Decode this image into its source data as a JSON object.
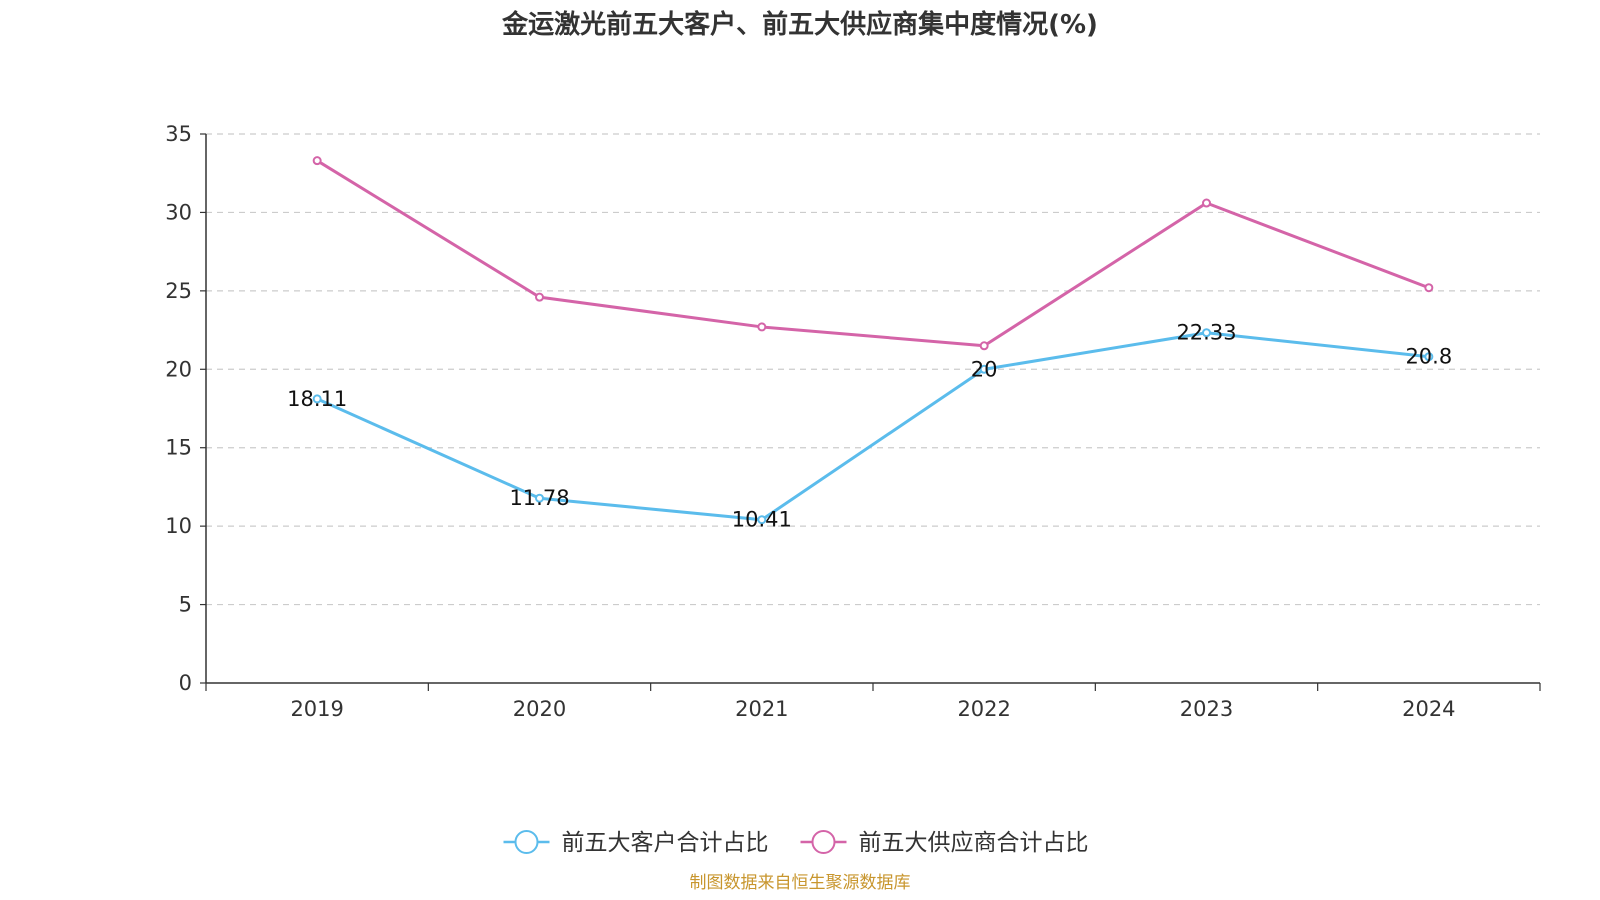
{
  "chart_data": {
    "type": "line",
    "title": "金运激光前五大客户、前五大供应商集中度情况(%)",
    "xlabel": "",
    "ylabel": "",
    "categories": [
      "2019",
      "2020",
      "2021",
      "2022",
      "2023",
      "2024"
    ],
    "ylim": [
      0,
      35
    ],
    "yticks": [
      0,
      5,
      10,
      15,
      20,
      25,
      30,
      35
    ],
    "grid": true,
    "legend_position": "bottom-center",
    "series": [
      {
        "name": "前五大客户合计占比",
        "color": "#5bbcec",
        "values": [
          18.11,
          11.78,
          10.41,
          20,
          22.33,
          20.8
        ],
        "labels": [
          "18.11",
          "11.78",
          "10.41",
          "20",
          "22.33",
          "20.8"
        ]
      },
      {
        "name": "前五大供应商合计占比",
        "color": "#d464a8",
        "values": [
          33.3,
          24.6,
          22.7,
          21.5,
          30.6,
          25.2
        ]
      }
    ],
    "source": "制图数据来自恒生聚源数据库"
  }
}
